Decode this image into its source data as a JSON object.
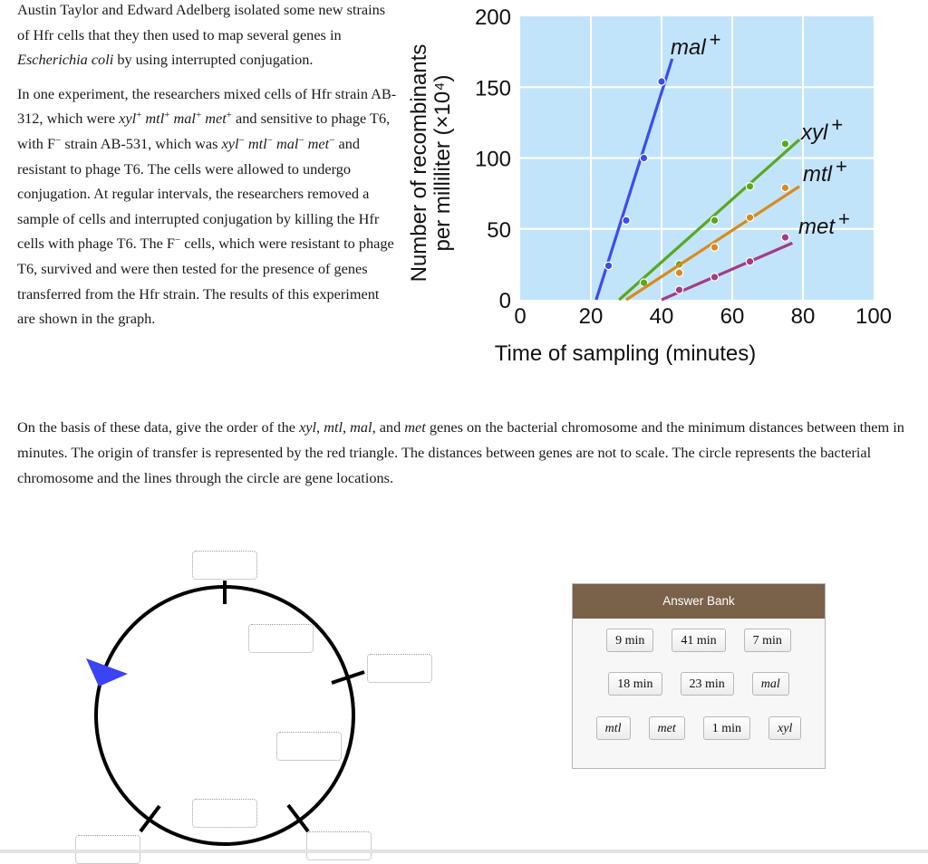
{
  "intro": {
    "p1": {
      "before": "Austin Taylor and Edward Adelberg isolated some new strains of Hfr cells that they then used to map several genes in ",
      "italic": "Escherichia coli",
      "after": " by using interrupted conjugation."
    },
    "p2": {
      "s1": "In one experiment, the researchers mixed cells of Hfr strain AB-312, which were ",
      "genes_plus": [
        {
          "name": "xyl",
          "sup": "+"
        },
        {
          "name": "mtl",
          "sup": "+"
        },
        {
          "name": "mal",
          "sup": "+"
        },
        {
          "name": "met",
          "sup": "+"
        }
      ],
      "s2": " and sensitive to phage T6, with F",
      "f_sup": "−",
      "s3": " strain AB-531, which was ",
      "genes_minus": [
        {
          "name": "xyl",
          "sup": "−"
        },
        {
          "name": "mtl",
          "sup": "−"
        },
        {
          "name": "mal",
          "sup": "−"
        },
        {
          "name": "met",
          "sup": "−"
        }
      ],
      "s4": " and resistant to phage T6. The cells were allowed to undergo conjugation. At regular intervals, the researchers removed a sample of cells and interrupted conjugation by killing the Hfr cells with phage T6. The F",
      "f_sup2": "−",
      "s5": " cells, which were resistant to phage T6, survived and were then tested for the presence of genes transferred from the Hfr strain. The results of this experiment are shown in the graph."
    }
  },
  "question": {
    "s1": "On the basis of these data, give the order of the ",
    "g1": "xyl",
    "c1": ", ",
    "g2": "mtl",
    "c2": ", ",
    "g3": "mal",
    "c3": ", and ",
    "g4": "met",
    "s2": " genes on the bacterial chromosome and the minimum distances between them in minutes. The origin of transfer is represented by the red triangle. The distances between genes are not to scale. The circle represents the bacterial chromosome and the lines through the circle are gene locations."
  },
  "chart_data": {
    "type": "line",
    "title": "",
    "xlabel": "Time of sampling (minutes)",
    "ylabel_line1": "Number of recombinants",
    "ylabel_line2": "per milliliter (×10⁴)",
    "xlim": [
      0,
      100
    ],
    "ylim": [
      0,
      200
    ],
    "x_ticks": [
      "0",
      "20",
      "40",
      "60",
      "80",
      "100"
    ],
    "y_ticks": [
      "0",
      "50",
      "100",
      "150",
      "200"
    ],
    "grid": true,
    "background": "#c2e4fb",
    "series": [
      {
        "name": "mal+",
        "label": "mal",
        "color": "#3a4df0",
        "points": [
          [
            25,
            24
          ],
          [
            30,
            56
          ],
          [
            35,
            100
          ],
          [
            40,
            154
          ]
        ],
        "line": [
          [
            21.5,
            0
          ],
          [
            43,
            170
          ]
        ]
      },
      {
        "name": "xyl+",
        "label": "xyl",
        "color": "#5aa821",
        "points": [
          [
            35,
            12
          ],
          [
            45,
            25
          ],
          [
            55,
            56
          ],
          [
            65,
            80
          ],
          [
            75,
            110
          ]
        ],
        "line": [
          [
            28,
            0
          ],
          [
            79,
            113
          ]
        ]
      },
      {
        "name": "mtl+",
        "label": "mtl",
        "color": "#d88a1e",
        "points": [
          [
            45,
            19
          ],
          [
            55,
            37
          ],
          [
            65,
            58
          ],
          [
            75,
            79
          ]
        ],
        "line": [
          [
            30,
            0
          ],
          [
            79,
            80
          ]
        ]
      },
      {
        "name": "met+",
        "label": "met",
        "color": "#a33c86",
        "points": [
          [
            45,
            7
          ],
          [
            55,
            16
          ],
          [
            65,
            27
          ],
          [
            75,
            44
          ]
        ],
        "line": [
          [
            40,
            0
          ],
          [
            77,
            40
          ]
        ]
      }
    ]
  },
  "diagram": {
    "origin_triangle_color": "#3a44f5",
    "drop_slots": 7
  },
  "answer_bank": {
    "title": "Answer Bank",
    "rows": [
      [
        {
          "label": "9 min",
          "italic": false
        },
        {
          "label": "41 min",
          "italic": false
        },
        {
          "label": "7 min",
          "italic": false
        }
      ],
      [
        {
          "label": "18 min",
          "italic": false
        },
        {
          "label": "23 min",
          "italic": false
        },
        {
          "label": "mal",
          "italic": true
        }
      ],
      [
        {
          "label": "mtl",
          "italic": true
        },
        {
          "label": "met",
          "italic": true
        },
        {
          "label": "1 min",
          "italic": false
        },
        {
          "label": "xyl",
          "italic": true
        }
      ]
    ]
  }
}
